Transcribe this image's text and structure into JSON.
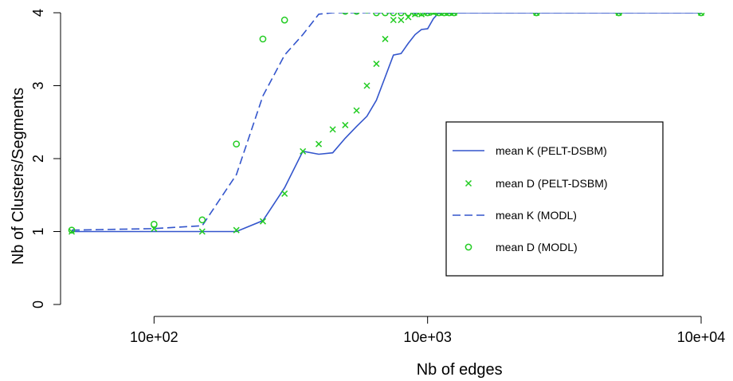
{
  "chart_data": {
    "type": "line",
    "xlabel": "Nb of edges",
    "ylabel": "Nb of Clusters/Segments",
    "x_scale": "log",
    "x_ticks": [
      {
        "value": 100,
        "label": "10e+02"
      },
      {
        "value": 1000,
        "label": "10e+03"
      },
      {
        "value": 10000,
        "label": "10e+04"
      }
    ],
    "y_ticks": [
      {
        "value": 0,
        "label": "0"
      },
      {
        "value": 1,
        "label": "1"
      },
      {
        "value": 2,
        "label": "2"
      },
      {
        "value": 3,
        "label": "3"
      },
      {
        "value": 4,
        "label": "4"
      }
    ],
    "xlim": [
      50,
      10000
    ],
    "ylim": [
      0,
      4
    ],
    "grid": false,
    "legend_position": "right",
    "colors": {
      "blue": "#3355cc",
      "green": "#22cc22",
      "axis": "#000000"
    },
    "series": [
      {
        "name": "mean K (PELT-DSBM)",
        "style": "solid-line",
        "color": "#3355cc",
        "x": [
          50,
          100,
          150,
          200,
          250,
          300,
          350,
          400,
          450,
          500,
          550,
          600,
          650,
          700,
          750,
          800,
          850,
          900,
          950,
          1000,
          1050,
          1100,
          1150,
          1200,
          1250,
          2500,
          5000,
          10000
        ],
        "y": [
          1.0,
          1.0,
          1.0,
          1.0,
          1.15,
          1.6,
          2.1,
          2.06,
          2.08,
          2.28,
          2.44,
          2.58,
          2.8,
          3.12,
          3.42,
          3.44,
          3.58,
          3.7,
          3.77,
          3.78,
          3.92,
          4.0,
          4.0,
          4.0,
          4.0,
          4.0,
          4.0,
          4.0
        ]
      },
      {
        "name": "mean D (PELT-DSBM)",
        "style": "x-markers",
        "color": "#22cc22",
        "x": [
          50,
          100,
          150,
          200,
          250,
          300,
          350,
          400,
          450,
          500,
          550,
          600,
          650,
          700,
          750,
          800,
          850,
          900,
          950,
          1000,
          1050,
          1100,
          1150,
          1200,
          1250,
          2500,
          5000,
          10000
        ],
        "y": [
          1.0,
          1.04,
          1.0,
          1.02,
          1.14,
          1.52,
          2.1,
          2.2,
          2.4,
          2.46,
          2.66,
          3.0,
          3.3,
          3.64,
          3.9,
          3.9,
          3.94,
          3.98,
          3.98,
          4.0,
          4.0,
          4.0,
          4.0,
          4.0,
          4.0,
          4.0,
          4.0,
          4.0
        ]
      },
      {
        "name": "mean K (MODL)",
        "style": "dashed-line",
        "color": "#3355cc",
        "x": [
          50,
          100,
          150,
          200,
          250,
          300,
          350,
          400,
          450,
          500,
          550,
          600,
          650,
          700,
          750,
          800,
          850,
          900,
          950,
          1000,
          1050,
          1100,
          1150,
          1200,
          1250,
          2500,
          5000,
          10000
        ],
        "y": [
          1.02,
          1.04,
          1.08,
          1.78,
          2.86,
          3.42,
          3.7,
          3.98,
          4.0,
          4.0,
          4.0,
          4.0,
          4.0,
          4.0,
          4.0,
          4.0,
          4.0,
          4.0,
          4.0,
          4.0,
          4.0,
          4.0,
          4.0,
          4.0,
          4.0,
          4.0,
          4.0,
          4.0
        ]
      },
      {
        "name": "mean D (MODL)",
        "style": "o-markers",
        "color": "#22cc22",
        "x": [
          50,
          100,
          150,
          200,
          250,
          300,
          350,
          400,
          450,
          500,
          550,
          600,
          650,
          700,
          750,
          800,
          850,
          900,
          950,
          1000,
          1050,
          1100,
          1150,
          1200,
          1250,
          2500,
          5000,
          10000
        ],
        "y": [
          1.02,
          1.1,
          1.16,
          2.2,
          3.64,
          3.9,
          4.08,
          4.06,
          4.06,
          4.02,
          4.02,
          4.04,
          4.0,
          4.0,
          4.0,
          4.0,
          4.0,
          4.0,
          4.0,
          4.0,
          4.02,
          4.0,
          4.0,
          4.0,
          4.0,
          4.0,
          4.0,
          4.0
        ]
      }
    ]
  }
}
